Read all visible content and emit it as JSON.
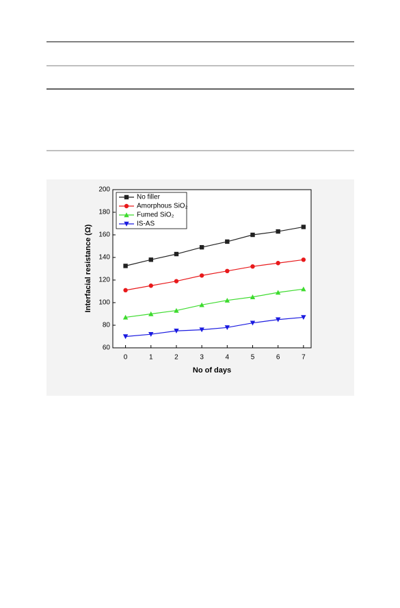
{
  "chart_data": {
    "type": "line",
    "x_label": "No of days",
    "y_label": "Interfacial resistance (Ω)",
    "x": [
      0,
      1,
      2,
      3,
      4,
      5,
      6,
      7
    ],
    "xlim": [
      -0.5,
      7.3
    ],
    "xticks": [
      0,
      1,
      2,
      3,
      4,
      5,
      6,
      7
    ],
    "ylim": [
      60,
      200
    ],
    "yticks": [
      60,
      80,
      100,
      120,
      140,
      160,
      180,
      200
    ],
    "legend": "upper left",
    "series": [
      {
        "name": "No filler",
        "color": "#222222",
        "marker": "square",
        "values": [
          132.5,
          138,
          143,
          149,
          154,
          160,
          163,
          167
        ]
      },
      {
        "name": "Amorphous SiO₂",
        "color": "#e8191b",
        "marker": "circle",
        "values": [
          111,
          115,
          119,
          124,
          128,
          132,
          135,
          138
        ]
      },
      {
        "name": "Fumed SiO₂",
        "color": "#3ddb2e",
        "marker": "triangle-up",
        "values": [
          87,
          90,
          93,
          98,
          102,
          105,
          109,
          112
        ]
      },
      {
        "name": "IS-AS",
        "color": "#1a1ae0",
        "marker": "triangle-down",
        "values": [
          70,
          72,
          75,
          76,
          78,
          82,
          85,
          87
        ]
      }
    ]
  }
}
